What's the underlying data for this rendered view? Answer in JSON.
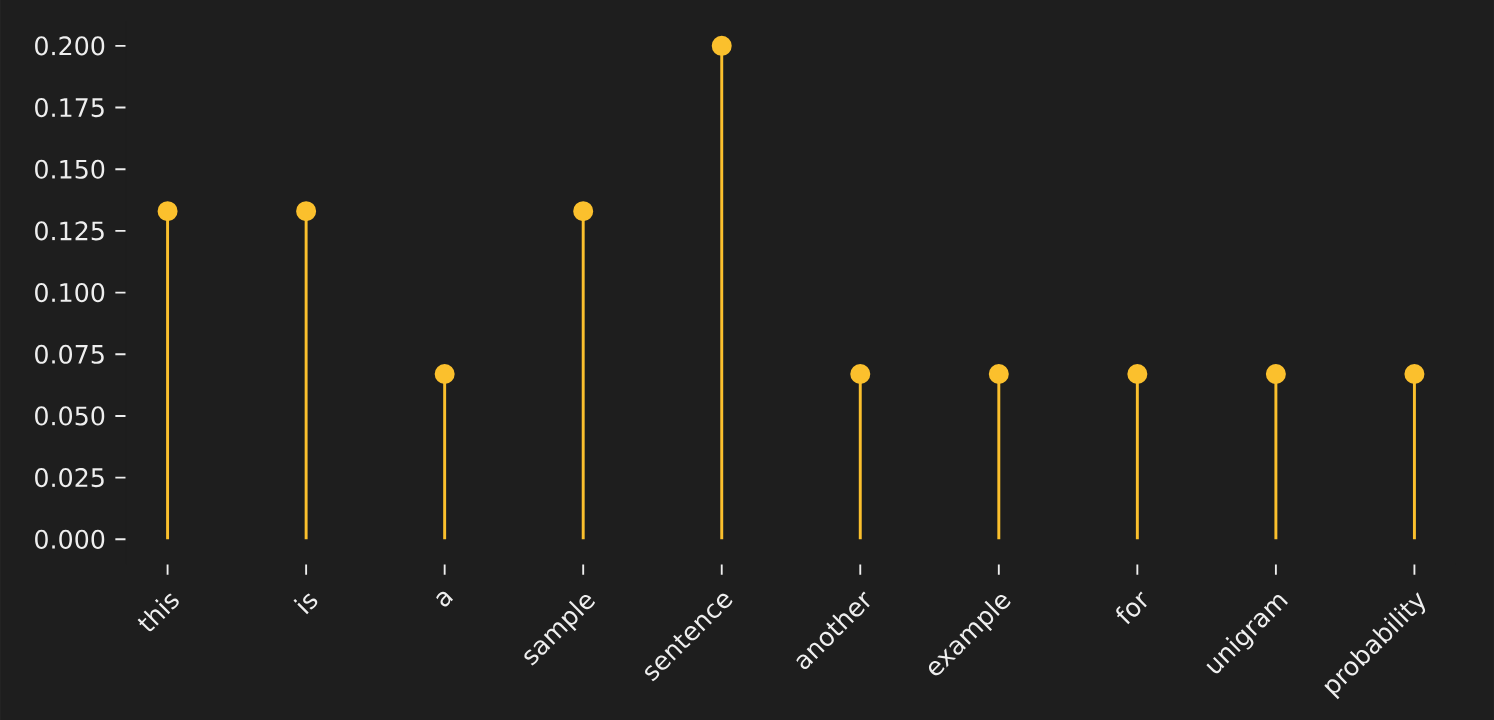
{
  "chart_data": {
    "type": "lollipop",
    "categories": [
      "this",
      "is",
      "a",
      "sample",
      "sentence",
      "another",
      "example",
      "for",
      "unigram",
      "probability"
    ],
    "values": [
      0.133,
      0.133,
      0.067,
      0.133,
      0.2,
      0.067,
      0.067,
      0.067,
      0.067,
      0.067
    ],
    "color": "#fbc02d",
    "marker": "circle",
    "ylim": [
      0,
      0.2
    ],
    "yticks": [
      {
        "value": 0,
        "label": "0.000"
      },
      {
        "value": 0.025,
        "label": "0.025"
      },
      {
        "value": 0.05,
        "label": "0.050"
      },
      {
        "value": 0.075,
        "label": "0.075"
      },
      {
        "value": 0.1,
        "label": "0.100"
      },
      {
        "value": 0.125,
        "label": "0.125"
      },
      {
        "value": 0.15,
        "label": "0.150"
      },
      {
        "value": 0.175,
        "label": "0.175"
      },
      {
        "value": 0.2,
        "label": "0.200"
      }
    ]
  }
}
